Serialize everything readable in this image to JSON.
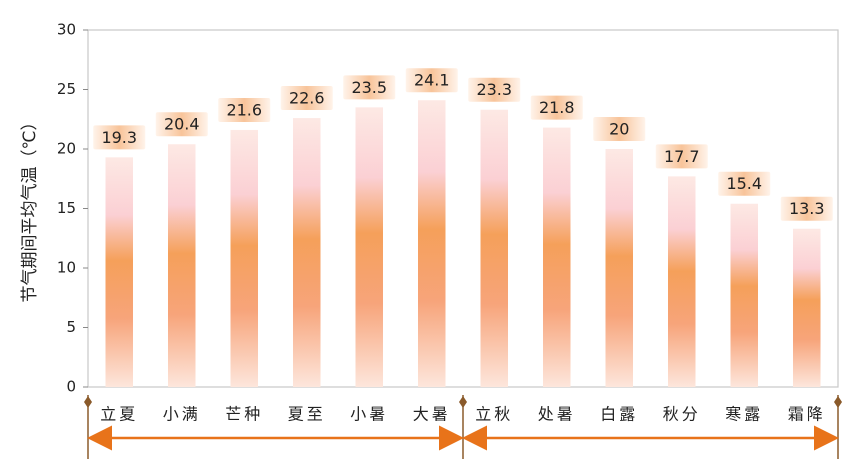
{
  "chart_data": {
    "type": "bar",
    "y_axis_label": "节气期间平均气温（℃）",
    "categories": [
      "立夏",
      "小满",
      "芒种",
      "夏至",
      "小暑",
      "大暑",
      "立秋",
      "处暑",
      "白露",
      "秋分",
      "寒露",
      "霜降"
    ],
    "values": [
      19.3,
      20.4,
      21.6,
      22.6,
      23.5,
      24.1,
      23.3,
      21.8,
      20,
      17.7,
      15.4,
      13.3
    ],
    "color": "#f5a05a",
    "ylim": [
      0,
      30
    ],
    "yticks": [
      0,
      5,
      10,
      15,
      20,
      25,
      30
    ],
    "grid": false
  }
}
